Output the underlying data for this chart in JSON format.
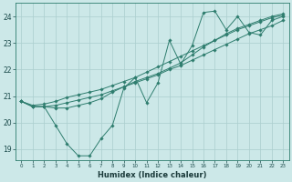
{
  "xlabel": "Humidex (Indice chaleur)",
  "ylabel": "",
  "bg_color": "#cce8e8",
  "line_color": "#2e7d6e",
  "grid_color": "#aacece",
  "x_min": 0,
  "x_max": 23,
  "y_min": 19,
  "y_max": 24,
  "line1_x": [
    0,
    1,
    2,
    3,
    4,
    5,
    6,
    7,
    8,
    9,
    10,
    11,
    12,
    13,
    14,
    15,
    16,
    17,
    18,
    19,
    20,
    21,
    22,
    23
  ],
  "line1_y": [
    20.8,
    20.6,
    20.6,
    19.9,
    19.2,
    18.75,
    18.75,
    19.4,
    19.9,
    21.3,
    21.7,
    20.75,
    21.5,
    23.1,
    22.2,
    22.9,
    24.15,
    24.2,
    23.5,
    24.0,
    23.4,
    23.3,
    23.85,
    24.0
  ],
  "line2_x": [
    0,
    1,
    2,
    3,
    4,
    5,
    6,
    7,
    8,
    9,
    10,
    11,
    12,
    13,
    14,
    15,
    16,
    17,
    18,
    19,
    20,
    21,
    22,
    23
  ],
  "line2_y": [
    20.8,
    20.6,
    20.6,
    20.65,
    20.75,
    20.85,
    20.95,
    21.05,
    21.2,
    21.35,
    21.5,
    21.65,
    21.8,
    22.0,
    22.15,
    22.35,
    22.55,
    22.75,
    22.95,
    23.15,
    23.35,
    23.5,
    23.65,
    23.85
  ],
  "line3_x": [
    0,
    1,
    2,
    3,
    4,
    5,
    6,
    7,
    8,
    9,
    10,
    11,
    12,
    13,
    14,
    15,
    16,
    17,
    18,
    19,
    20,
    21,
    22,
    23
  ],
  "line3_y": [
    20.8,
    20.65,
    20.7,
    20.8,
    20.95,
    21.05,
    21.15,
    21.25,
    21.4,
    21.55,
    21.7,
    21.9,
    22.1,
    22.3,
    22.5,
    22.7,
    22.9,
    23.1,
    23.3,
    23.5,
    23.65,
    23.8,
    23.95,
    24.05
  ],
  "line4_x": [
    0,
    1,
    2,
    3,
    4,
    5,
    6,
    7,
    8,
    9,
    10,
    11,
    12,
    13,
    14,
    15,
    16,
    17,
    18,
    19,
    20,
    21,
    22,
    23
  ],
  "line4_y": [
    20.8,
    20.6,
    20.6,
    20.55,
    20.55,
    20.65,
    20.75,
    20.9,
    21.15,
    21.35,
    21.55,
    21.7,
    21.85,
    22.05,
    22.25,
    22.55,
    22.85,
    23.1,
    23.35,
    23.55,
    23.7,
    23.85,
    24.0,
    24.1
  ]
}
